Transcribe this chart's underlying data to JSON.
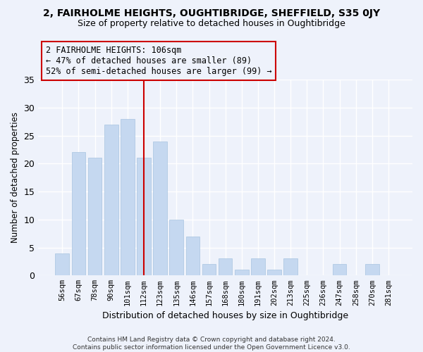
{
  "title1": "2, FAIRHOLME HEIGHTS, OUGHTIBRIDGE, SHEFFIELD, S35 0JY",
  "title2": "Size of property relative to detached houses in Oughtibridge",
  "xlabel": "Distribution of detached houses by size in Oughtibridge",
  "ylabel": "Number of detached properties",
  "categories": [
    "56sqm",
    "67sqm",
    "78sqm",
    "90sqm",
    "101sqm",
    "112sqm",
    "123sqm",
    "135sqm",
    "146sqm",
    "157sqm",
    "168sqm",
    "180sqm",
    "191sqm",
    "202sqm",
    "213sqm",
    "225sqm",
    "236sqm",
    "247sqm",
    "258sqm",
    "270sqm",
    "281sqm"
  ],
  "values": [
    4,
    22,
    21,
    27,
    28,
    21,
    24,
    10,
    7,
    2,
    3,
    1,
    3,
    1,
    3,
    0,
    0,
    2,
    0,
    2,
    0
  ],
  "bar_color": "#c5d8f0",
  "bar_edgecolor": "#a8c4e0",
  "vline_x": 5.0,
  "vline_color": "#cc0000",
  "annotation_line1": "2 FAIRHOLME HEIGHTS: 106sqm",
  "annotation_line2": "← 47% of detached houses are smaller (89)",
  "annotation_line3": "52% of semi-detached houses are larger (99) →",
  "annotation_box_edgecolor": "#cc0000",
  "ylim": [
    0,
    35
  ],
  "yticks": [
    0,
    5,
    10,
    15,
    20,
    25,
    30,
    35
  ],
  "footer": "Contains HM Land Registry data © Crown copyright and database right 2024.\nContains public sector information licensed under the Open Government Licence v3.0.",
  "bg_color": "#eef2fb",
  "plot_bg_color": "#eef2fb",
  "grid_color": "#ffffff"
}
